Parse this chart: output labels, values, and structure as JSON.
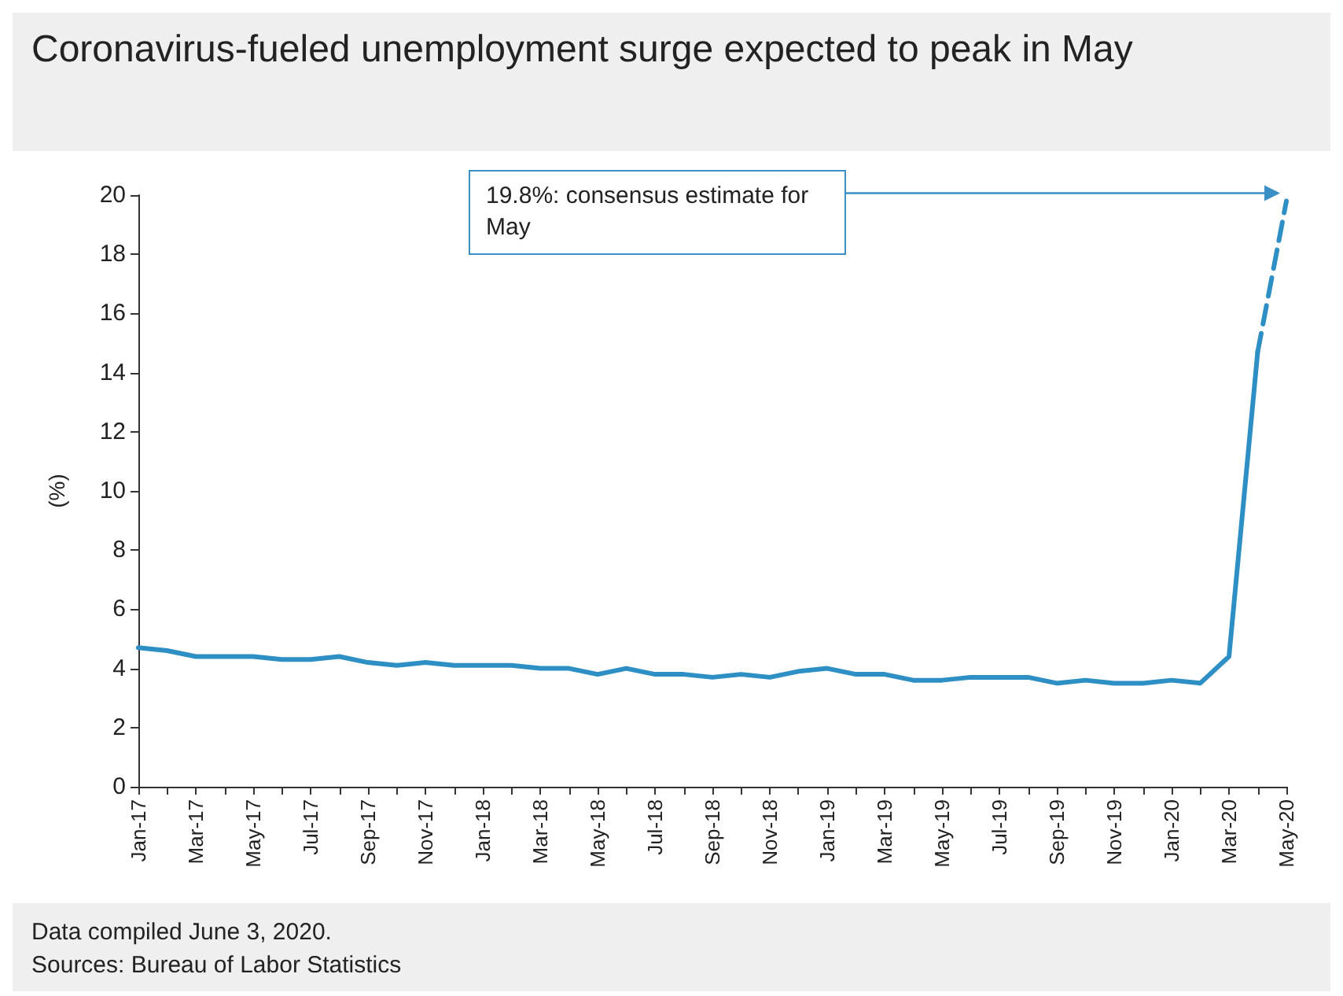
{
  "chart_data": {
    "type": "line",
    "title": "Coronavirus-fueled unemployment surge expected to peak in May",
    "ylabel": "(%)",
    "categories": [
      "Jan-17",
      null,
      "Mar-17",
      null,
      "May-17",
      null,
      "Jul-17",
      null,
      "Sep-17",
      null,
      "Nov-17",
      null,
      "Jan-18",
      null,
      "Mar-18",
      null,
      "May-18",
      null,
      "Jul-18",
      null,
      "Sep-18",
      null,
      "Nov-18",
      null,
      "Jan-19",
      null,
      "Mar-19",
      null,
      "May-19",
      null,
      "Jul-19",
      null,
      "Sep-19",
      null,
      "Nov-19",
      null,
      "Jan-20",
      null,
      "Mar-20",
      null,
      "May-20"
    ],
    "series": [
      {
        "color": "#2e8fc4",
        "line_style": "solid",
        "values": [
          4.7,
          4.6,
          4.4,
          4.4,
          4.4,
          4.3,
          4.3,
          4.4,
          4.2,
          4.1,
          4.2,
          4.1,
          4.1,
          4.1,
          4.0,
          4.0,
          3.8,
          4.0,
          3.8,
          3.8,
          3.7,
          3.8,
          3.7,
          3.9,
          4.0,
          3.8,
          3.8,
          3.6,
          3.6,
          3.7,
          3.7,
          3.7,
          3.5,
          3.6,
          3.5,
          3.5,
          3.6,
          3.5,
          4.4,
          14.7,
          null
        ]
      },
      {
        "color": "#2e8fc4",
        "line_style": "dashed",
        "values": [
          null,
          null,
          null,
          null,
          null,
          null,
          null,
          null,
          null,
          null,
          null,
          null,
          null,
          null,
          null,
          null,
          null,
          null,
          null,
          null,
          null,
          null,
          null,
          null,
          null,
          null,
          null,
          null,
          null,
          null,
          null,
          null,
          null,
          null,
          null,
          null,
          null,
          null,
          null,
          14.7,
          19.8
        ]
      }
    ],
    "ylim": [
      0,
      20
    ],
    "yticks": [
      0,
      2,
      4,
      6,
      8,
      10,
      12,
      14,
      16,
      18,
      20
    ],
    "grid": false,
    "marker": "none",
    "annotations": [
      "19.8%: consensus estimate for May",
      "Data compiled June 3, 2020.",
      "Sources: Bureau of Labor Statistics"
    ]
  }
}
